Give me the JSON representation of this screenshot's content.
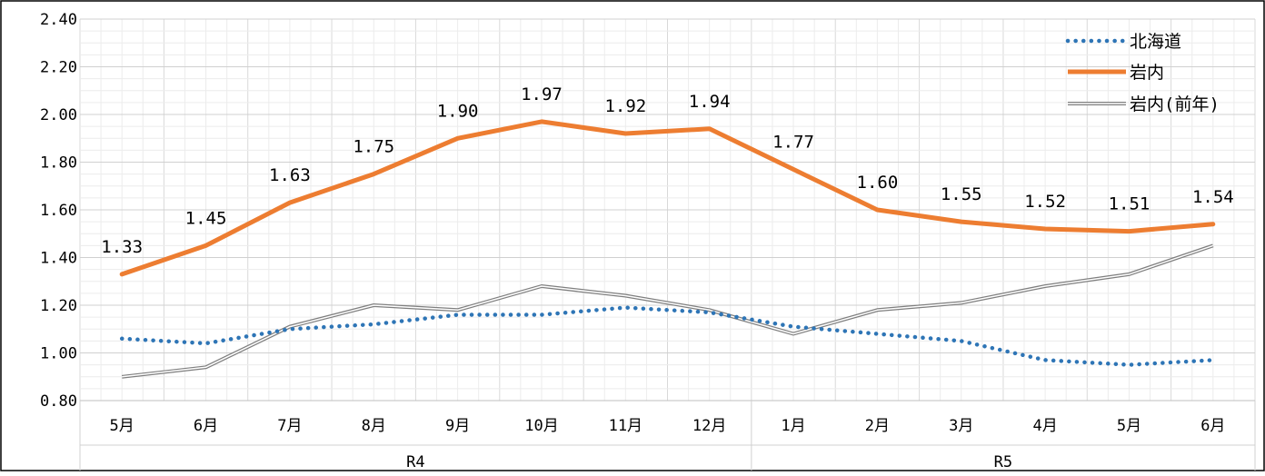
{
  "chart_data": {
    "type": "line",
    "categories": [
      "5月",
      "6月",
      "7月",
      "8月",
      "9月",
      "10月",
      "11月",
      "12月",
      "1月",
      "2月",
      "3月",
      "4月",
      "5月",
      "6月"
    ],
    "groups": [
      {
        "label": "R4",
        "from": 0,
        "to": 7
      },
      {
        "label": "R5",
        "from": 8,
        "to": 13
      }
    ],
    "ylim": [
      0.8,
      2.4
    ],
    "yticks": [
      "0.80",
      "1.00",
      "1.20",
      "1.40",
      "1.60",
      "1.80",
      "2.00",
      "2.20",
      "2.40"
    ],
    "grid": true,
    "legend_position": "top-right",
    "series": [
      {
        "name": "北海道",
        "color": "#2e75b6",
        "style": "dotted",
        "values": [
          1.06,
          1.04,
          1.1,
          1.12,
          1.16,
          1.16,
          1.19,
          1.17,
          1.11,
          1.08,
          1.05,
          0.97,
          0.95,
          0.97
        ]
      },
      {
        "name": "岩内",
        "color": "#ed7d31",
        "style": "solid",
        "values": [
          1.33,
          1.45,
          1.63,
          1.75,
          1.9,
          1.97,
          1.92,
          1.94,
          1.77,
          1.6,
          1.55,
          1.52,
          1.51,
          1.54
        ],
        "data_labels": [
          "1.33",
          "1.45",
          "1.63",
          "1.75",
          "1.90",
          "1.97",
          "1.92",
          "1.94",
          "1.77",
          "1.60",
          "1.55",
          "1.52",
          "1.51",
          "1.54"
        ]
      },
      {
        "name": "岩内(前年)",
        "color": "#7f7f7f",
        "style": "double",
        "values": [
          0.9,
          0.94,
          1.11,
          1.2,
          1.18,
          1.28,
          1.24,
          1.18,
          1.08,
          1.18,
          1.21,
          1.28,
          1.33,
          1.45
        ]
      }
    ]
  }
}
